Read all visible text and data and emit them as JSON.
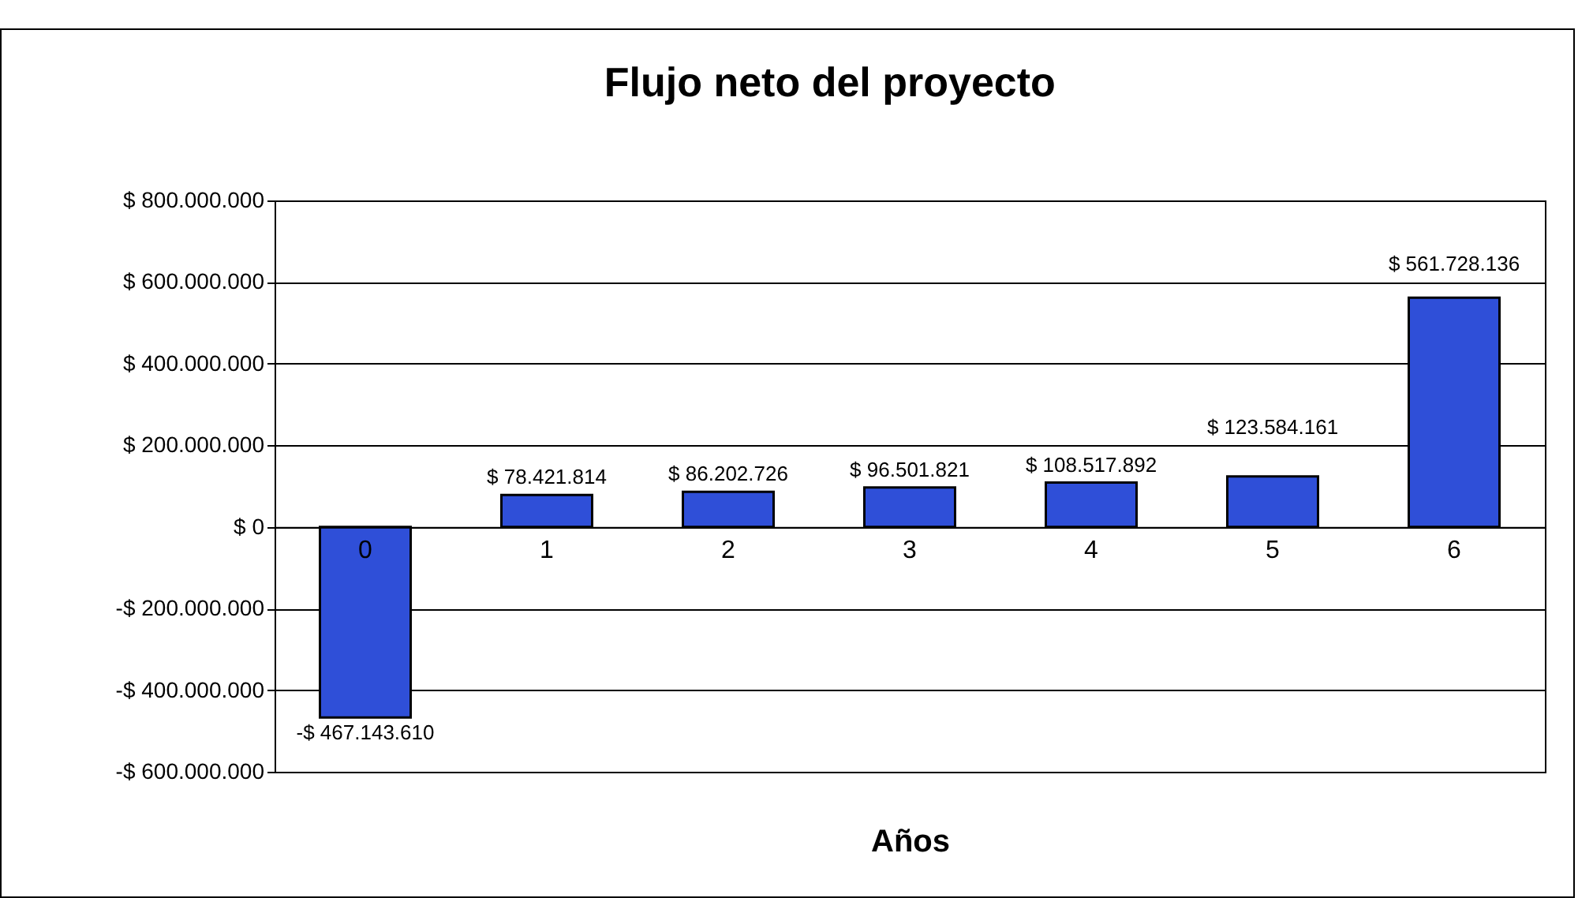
{
  "chart_data": {
    "type": "bar",
    "title": "Flujo neto del proyecto",
    "xlabel": "Años",
    "categories": [
      "0",
      "1",
      "2",
      "3",
      "4",
      "5",
      "6"
    ],
    "values": [
      -467143610,
      78421814,
      86202726,
      96501821,
      108517892,
      123584161,
      561728136
    ],
    "value_labels": [
      "-$ 467.143.610",
      "$ 78.421.814",
      "$ 86.202.726",
      "$ 96.501.821",
      "$ 108.517.892",
      "$ 123.584.161",
      "$ 561.728.136"
    ],
    "color": "#2f4fd8",
    "ylim": [
      -600000000,
      800000000
    ],
    "yticks": [
      {
        "value": -600000000,
        "label": "-$ 600.000.000"
      },
      {
        "value": -400000000,
        "label": "-$ 400.000.000"
      },
      {
        "value": -200000000,
        "label": "-$ 200.000.000"
      },
      {
        "value": 0,
        "label": "$ 0"
      },
      {
        "value": 200000000,
        "label": "$ 200.000.000"
      },
      {
        "value": 400000000,
        "label": "$ 400.000.000"
      },
      {
        "value": 600000000,
        "label": "$ 600.000.000"
      },
      {
        "value": 800000000,
        "label": "$ 800.000.000"
      }
    ],
    "grid": "y"
  }
}
